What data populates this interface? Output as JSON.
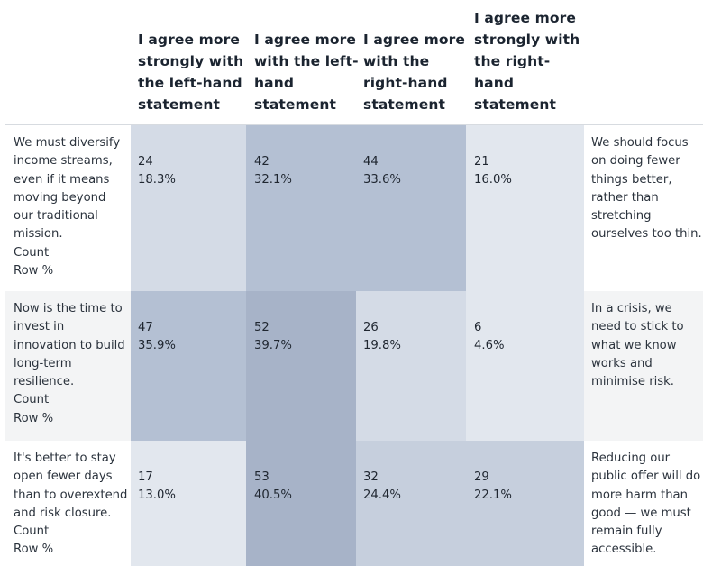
{
  "chart_data": {
    "type": "table",
    "columns": [
      [
        "I agree more",
        "strongly with",
        "the left-hand",
        "statement"
      ],
      [
        "I agree more",
        "with the left-",
        "hand",
        "statement"
      ],
      [
        "I agree more",
        "with the",
        "right-hand",
        "statement"
      ],
      [
        "I agree more",
        "strongly with",
        "the right-",
        "hand",
        "statement"
      ]
    ],
    "rows": [
      {
        "left": [
          "We must diversify",
          "income streams,",
          "even if it means",
          "moving beyond",
          "our traditional",
          "mission."
        ],
        "metrics": [
          "Count",
          "Row %"
        ],
        "right": [
          "We should focus",
          "on doing fewer",
          "things better,",
          "rather than",
          "stretching",
          "ourselves too thin."
        ],
        "counts": [
          "24",
          "42",
          "44",
          "21"
        ],
        "pcts": [
          "18.3%",
          "32.1%",
          "33.6%",
          "16.0%"
        ],
        "shares": [
          18.3,
          32.1,
          33.6,
          16.0
        ]
      },
      {
        "left": [
          "Now is the time to",
          "invest in",
          "innovation to build",
          "long-term",
          "resilience."
        ],
        "metrics": [
          "Count",
          "Row %"
        ],
        "right": [
          "In a crisis, we",
          "need to stick to",
          "what we know",
          "works and",
          "minimise risk."
        ],
        "counts": [
          "47",
          "52",
          "26",
          "6"
        ],
        "pcts": [
          "35.9%",
          "39.7%",
          "19.8%",
          "4.6%"
        ],
        "shares": [
          35.9,
          39.7,
          19.8,
          4.6
        ]
      },
      {
        "left": [
          "It's better to stay",
          "open fewer days",
          "than to overextend",
          "and risk closure."
        ],
        "metrics": [
          "Count",
          "Row %"
        ],
        "right": [
          "Reducing our",
          "public offer will do",
          "more harm than",
          "good — we must",
          "remain fully",
          "accessible."
        ],
        "counts": [
          "17",
          "53",
          "32",
          "29"
        ],
        "pcts": [
          "13.0%",
          "40.5%",
          "24.4%",
          "22.1%"
        ],
        "shares": [
          13.0,
          40.5,
          24.4,
          22.1
        ]
      }
    ],
    "row_backgrounds": [
      "#ffffff",
      "#f3f4f5",
      "#ffffff"
    ],
    "shade_colors": [
      "#e2e7ee",
      "#d4dbe6",
      "#c6cfdd",
      "#b4c0d3",
      "#a7b3c8"
    ]
  }
}
